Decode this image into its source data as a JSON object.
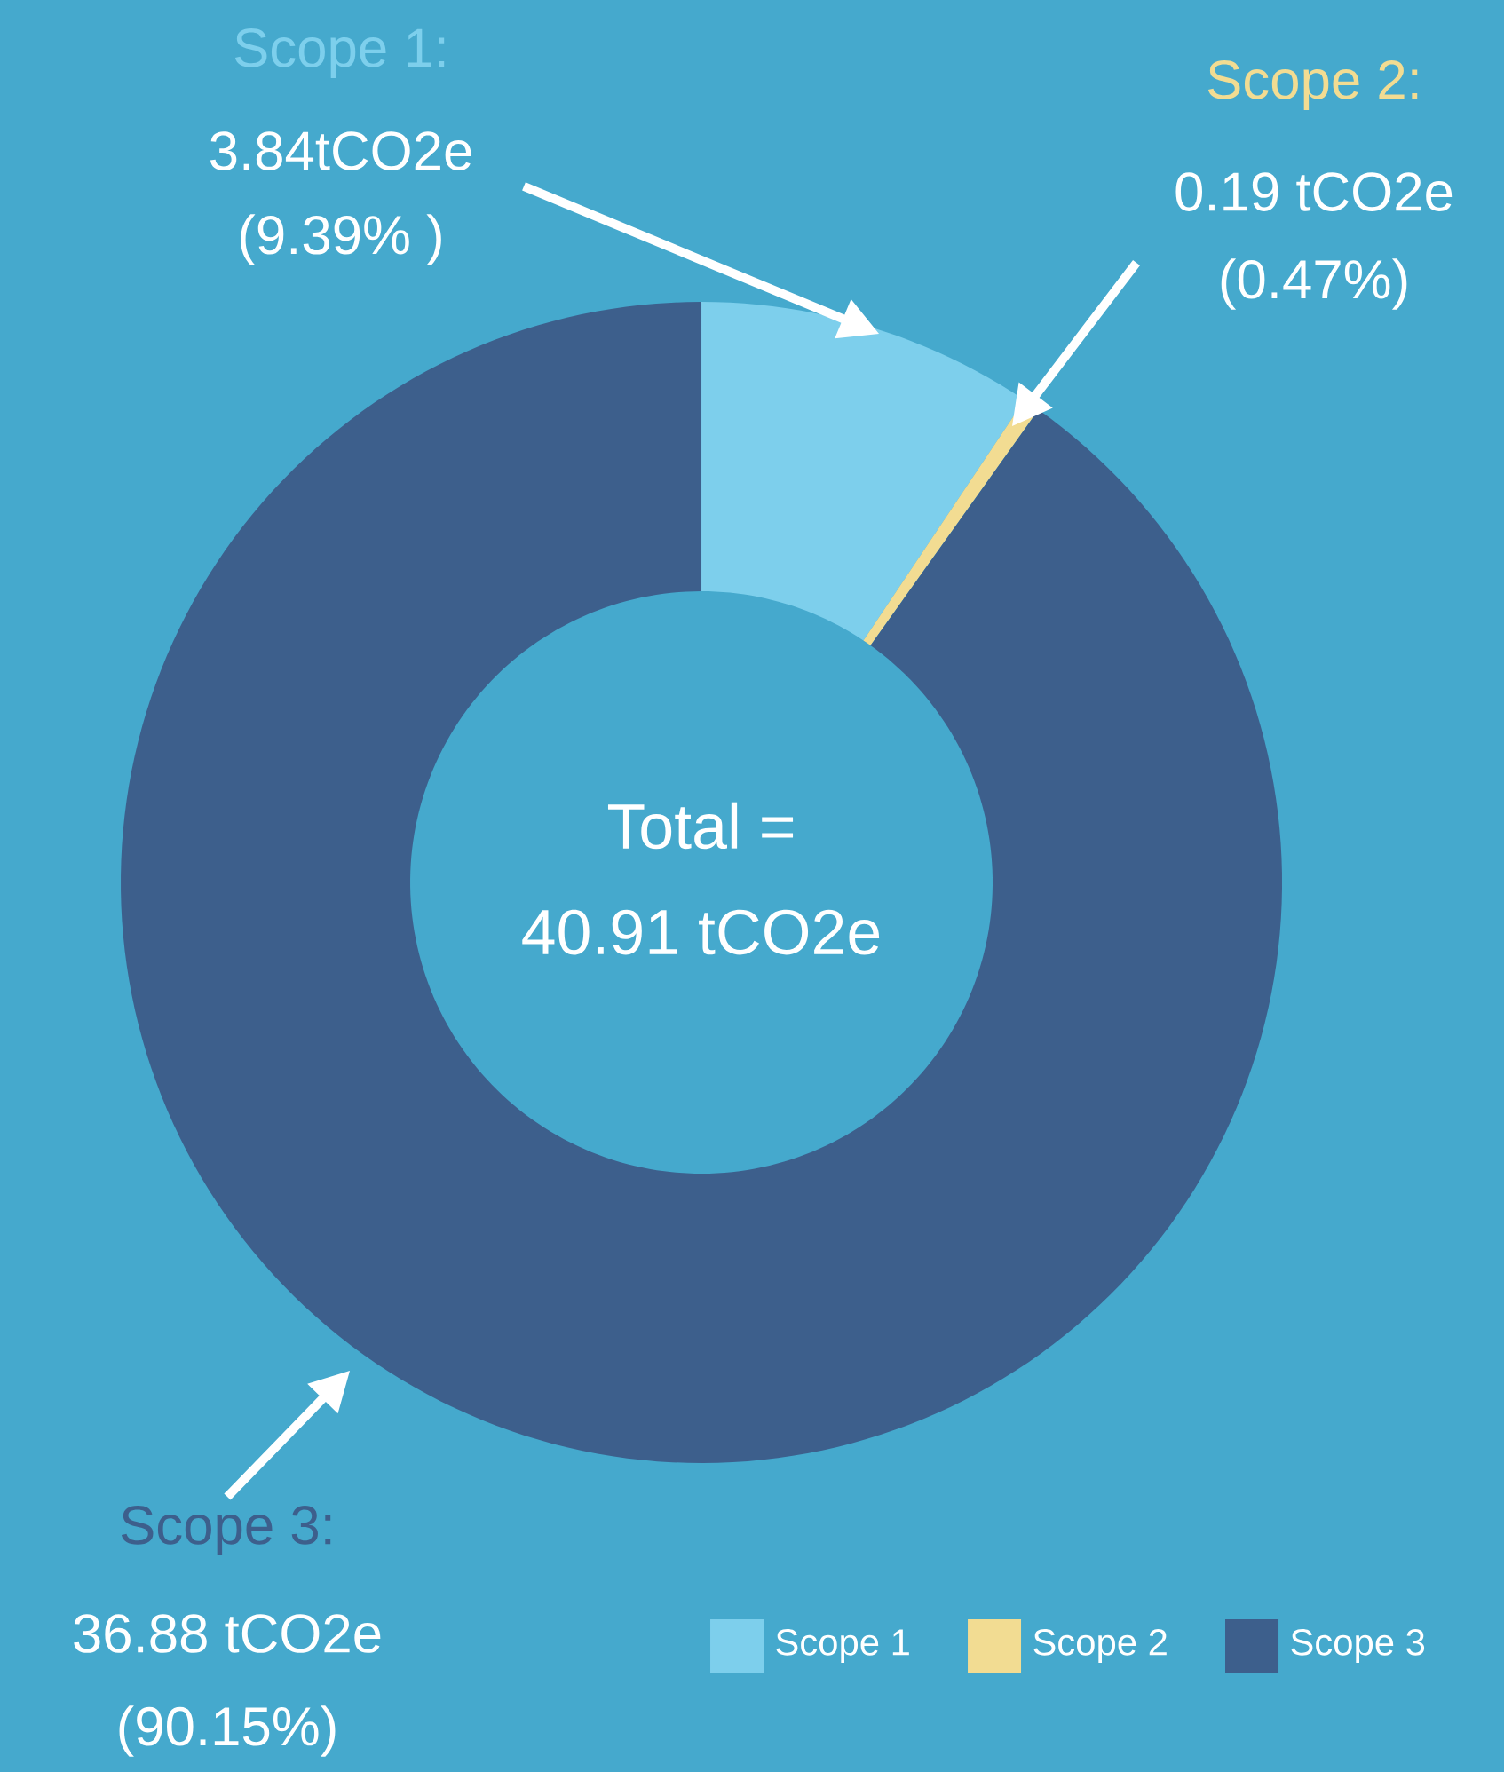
{
  "chart_data": {
    "type": "donut",
    "categories": [
      "Scope 1",
      "Scope 2",
      "Scope 3"
    ],
    "values": [
      9.39,
      0.47,
      90.15
    ],
    "colors": [
      "#7dcfec",
      "#f2dc92",
      "#3d5f8c"
    ],
    "legend": "bottom right",
    "annotations": [
      "Scope 1:",
      "3.84tCO2e",
      "(9.39% )",
      "Scope 2:",
      "0.19 tCO2e",
      "(0.47%)",
      "Scope 3:",
      "36.88 tCO2e",
      "(90.15%)",
      "Total  =",
      "40.91 tCO2e"
    ]
  }
}
